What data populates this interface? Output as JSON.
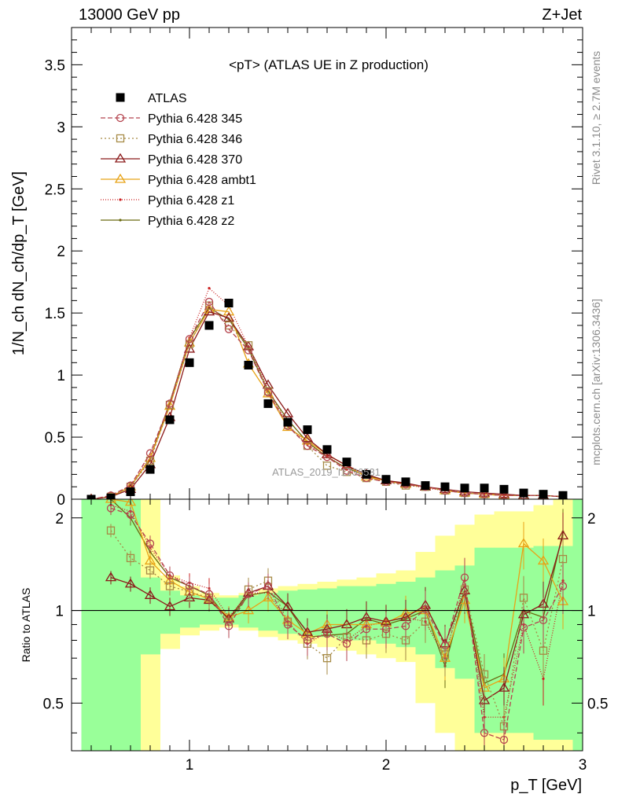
{
  "header": {
    "left": "13000 GeV pp",
    "right": "Z+Jet"
  },
  "side_labels": {
    "rivet": "Rivet 3.1.10, ≥ 2.7M events",
    "mcplots": "mcplots.cern.ch [arXiv:1306.3436]"
  },
  "watermark": "ATLAS_2019_I1736531",
  "chart_data": [
    {
      "type": "line",
      "title": "<pT> (ATLAS UE in Z production)",
      "ylabel": "1/N_ch dN_ch/dp_T [GeV]",
      "xlim": [
        0.4,
        3.0
      ],
      "ylim": [
        0,
        3.8
      ],
      "yticks": [
        0,
        0.5,
        1,
        1.5,
        2,
        2.5,
        3,
        3.5
      ],
      "ytick_labels": [
        "0",
        "0.5",
        "1",
        "1.5",
        "2",
        "2.5",
        "3",
        "3.5"
      ],
      "x": [
        0.5,
        0.6,
        0.7,
        0.8,
        0.9,
        1.0,
        1.1,
        1.2,
        1.3,
        1.4,
        1.5,
        1.6,
        1.7,
        1.8,
        1.9,
        2.0,
        2.1,
        2.2,
        2.3,
        2.4,
        2.5,
        2.6,
        2.7,
        2.8,
        2.9
      ],
      "legend_position": "top-left",
      "series": [
        {
          "name": "ATLAS",
          "color": "#000000",
          "marker": "square-filled",
          "values": [
            0.0,
            0.01,
            0.06,
            0.24,
            0.64,
            1.1,
            1.4,
            1.58,
            1.08,
            0.77,
            0.62,
            0.56,
            0.4,
            0.3,
            0.2,
            0.16,
            0.14,
            0.11,
            0.1,
            0.09,
            0.09,
            0.08,
            0.05,
            0.04,
            0.03
          ]
        },
        {
          "name": "Pythia 6.428 345",
          "color": "#b5454f",
          "marker": "circle-open",
          "dash": "6,3",
          "values": [
            0.0,
            0.03,
            0.11,
            0.37,
            0.77,
            1.29,
            1.59,
            1.37,
            1.2,
            0.86,
            0.59,
            0.43,
            0.34,
            0.23,
            0.17,
            0.14,
            0.12,
            0.1,
            0.07,
            0.05,
            0.04,
            0.03,
            0.03,
            0.03,
            0.02
          ]
        },
        {
          "name": "Pythia 6.428 346",
          "color": "#a68a45",
          "marker": "square-open",
          "dash": "2,3",
          "values": [
            0.0,
            0.02,
            0.1,
            0.31,
            0.76,
            1.25,
            1.56,
            1.4,
            1.24,
            0.87,
            0.6,
            0.43,
            0.27,
            0.22,
            0.17,
            0.14,
            0.11,
            0.1,
            0.07,
            0.05,
            0.04,
            0.03,
            0.03,
            0.03,
            0.02
          ]
        },
        {
          "name": "Pythia 6.428 370",
          "color": "#8b1a1a",
          "marker": "triangle-open",
          "dash": "",
          "values": [
            0.0,
            0.02,
            0.08,
            0.28,
            0.66,
            1.21,
            1.51,
            1.46,
            1.23,
            0.92,
            0.69,
            0.49,
            0.36,
            0.27,
            0.2,
            0.15,
            0.13,
            0.1,
            0.08,
            0.06,
            0.05,
            0.04,
            0.03,
            0.03,
            0.02
          ]
        },
        {
          "name": "Pythia 6.428 ambt1",
          "color": "#e8a317",
          "marker": "triangle-open",
          "dash": "",
          "values": [
            0.0,
            0.02,
            0.1,
            0.33,
            0.75,
            1.26,
            1.53,
            1.51,
            1.09,
            0.85,
            0.58,
            0.47,
            0.36,
            0.27,
            0.18,
            0.15,
            0.12,
            0.1,
            0.07,
            0.05,
            0.04,
            0.03,
            0.03,
            0.03,
            0.02
          ]
        },
        {
          "name": "Pythia 6.428 z1",
          "color": "#cc2222",
          "marker": "dot",
          "dash": "1,2",
          "values": [
            0.0,
            0.02,
            0.11,
            0.34,
            0.78,
            1.3,
            1.7,
            1.56,
            1.23,
            0.89,
            0.6,
            0.44,
            0.35,
            0.24,
            0.18,
            0.15,
            0.12,
            0.09,
            0.07,
            0.05,
            0.04,
            0.03,
            0.03,
            0.03,
            0.02
          ]
        },
        {
          "name": "Pythia 6.428 z2",
          "color": "#6b6b12",
          "marker": "dot",
          "dash": "",
          "values": [
            0.0,
            0.02,
            0.1,
            0.33,
            0.78,
            1.29,
            1.54,
            1.45,
            1.21,
            0.87,
            0.64,
            0.46,
            0.34,
            0.25,
            0.19,
            0.15,
            0.12,
            0.1,
            0.07,
            0.05,
            0.04,
            0.03,
            0.03,
            0.03,
            0.02
          ]
        }
      ]
    },
    {
      "type": "line",
      "ylabel": "Ratio to ATLAS",
      "xlabel": "p_T [GeV]",
      "xlim": [
        0.4,
        3.0
      ],
      "ylim": [
        0.35,
        2.3
      ],
      "xticks": [
        1,
        2,
        3
      ],
      "xtick_labels": [
        "1",
        "2",
        "3"
      ],
      "yticks": [
        0.5,
        1,
        2
      ],
      "ytick_labels": [
        "0.5",
        "1",
        "2"
      ],
      "reference_line": 1,
      "bands": {
        "green_low": [
          0.35,
          0.35,
          0.35,
          0.72,
          0.84,
          0.88,
          0.9,
          0.9,
          0.88,
          0.86,
          0.84,
          0.83,
          0.82,
          0.8,
          0.8,
          0.78,
          0.76,
          0.72,
          0.65,
          0.6,
          0.4,
          0.4,
          0.4,
          0.38,
          0.38,
          0.35
        ],
        "green_high": [
          2.3,
          2.3,
          2.3,
          1.28,
          1.16,
          1.12,
          1.1,
          1.1,
          1.12,
          1.14,
          1.16,
          1.17,
          1.18,
          1.2,
          1.2,
          1.22,
          1.24,
          1.28,
          1.35,
          1.4,
          1.6,
          1.6,
          1.6,
          1.62,
          1.62,
          2.3
        ],
        "yellow_low": [
          0.35,
          0.35,
          0.35,
          0.35,
          0.75,
          0.83,
          0.86,
          0.88,
          0.86,
          0.82,
          0.8,
          0.78,
          0.76,
          0.74,
          0.72,
          0.7,
          0.68,
          0.5,
          0.4,
          0.35,
          0.35,
          0.35,
          0.35,
          0.35,
          0.35,
          0.35
        ],
        "yellow_high": [
          2.3,
          2.3,
          2.3,
          2.3,
          1.3,
          1.2,
          1.14,
          1.12,
          1.14,
          1.18,
          1.2,
          1.22,
          1.24,
          1.26,
          1.28,
          1.32,
          1.35,
          1.55,
          1.75,
          1.9,
          2.05,
          2.1,
          2.1,
          2.2,
          2.3,
          2.3
        ]
      },
      "x": [
        0.6,
        0.7,
        0.8,
        0.9,
        1.0,
        1.1,
        1.2,
        1.3,
        1.4,
        1.5,
        1.6,
        1.7,
        1.8,
        1.9,
        2.0,
        2.1,
        2.2,
        2.3,
        2.4,
        2.5,
        2.6,
        2.7,
        2.8,
        2.9
      ],
      "series": [
        {
          "name": "Pythia 6.428 345",
          "color": "#b5454f",
          "marker": "circle-open",
          "dash": "6,3",
          "values": [
            2.15,
            2.05,
            1.65,
            1.3,
            1.2,
            1.13,
            0.89,
            1.13,
            1.2,
            0.9,
            0.8,
            0.84,
            0.78,
            0.87,
            0.87,
            0.89,
            1.01,
            0.77,
            1.28,
            0.4,
            0.38,
            0.88,
            0.93,
            1.2
          ]
        },
        {
          "name": "Pythia 6.428 346",
          "color": "#a68a45",
          "marker": "square-open",
          "dash": "2,3",
          "values": [
            1.82,
            1.48,
            1.35,
            1.2,
            1.15,
            1.1,
            0.92,
            1.17,
            1.25,
            0.92,
            0.78,
            0.7,
            0.82,
            0.8,
            0.84,
            0.8,
            0.92,
            0.72,
            1.17,
            0.62,
            0.42,
            1.1,
            0.74,
            1.47
          ]
        },
        {
          "name": "Pythia 6.428 370",
          "color": "#8b1a1a",
          "marker": "triangle-open",
          "dash": "",
          "values": [
            1.28,
            1.22,
            1.12,
            1.03,
            1.1,
            1.08,
            0.94,
            1.14,
            1.2,
            1.03,
            0.85,
            0.87,
            0.9,
            0.95,
            0.92,
            0.95,
            1.04,
            0.78,
            1.16,
            0.51,
            0.56,
            0.97,
            1.05,
            1.75
          ]
        },
        {
          "name": "Pythia 6.428 ambt1",
          "color": "#e8a317",
          "marker": "triangle-open",
          "dash": "",
          "values": [
            2.3,
            2.25,
            1.45,
            1.25,
            1.15,
            1.09,
            0.95,
            1.0,
            1.1,
            0.93,
            0.84,
            0.9,
            0.9,
            0.9,
            0.91,
            0.98,
            1.0,
            0.7,
            1.08,
            0.56,
            0.6,
            1.65,
            1.45,
            1.07
          ]
        },
        {
          "name": "Pythia 6.428 z1",
          "color": "#cc2222",
          "marker": "dot",
          "dash": "1,2",
          "values": [
            2.2,
            2.1,
            1.6,
            1.3,
            1.23,
            1.18,
            0.95,
            1.14,
            1.14,
            0.92,
            0.78,
            0.85,
            0.8,
            0.89,
            0.92,
            0.95,
            0.92,
            0.7,
            1.25,
            0.45,
            0.45,
            0.9,
            0.6,
            1.25
          ]
        },
        {
          "name": "Pythia 6.428 z2",
          "color": "#6b6b12",
          "marker": "dot",
          "dash": "",
          "values": [
            2.3,
            2.0,
            1.55,
            1.28,
            1.2,
            1.12,
            0.93,
            1.12,
            1.15,
            1.03,
            0.82,
            0.83,
            0.84,
            0.94,
            0.9,
            0.94,
            1.0,
            0.66,
            1.15,
            0.58,
            0.62,
            1.0,
            0.95,
            1.8
          ]
        }
      ]
    }
  ]
}
